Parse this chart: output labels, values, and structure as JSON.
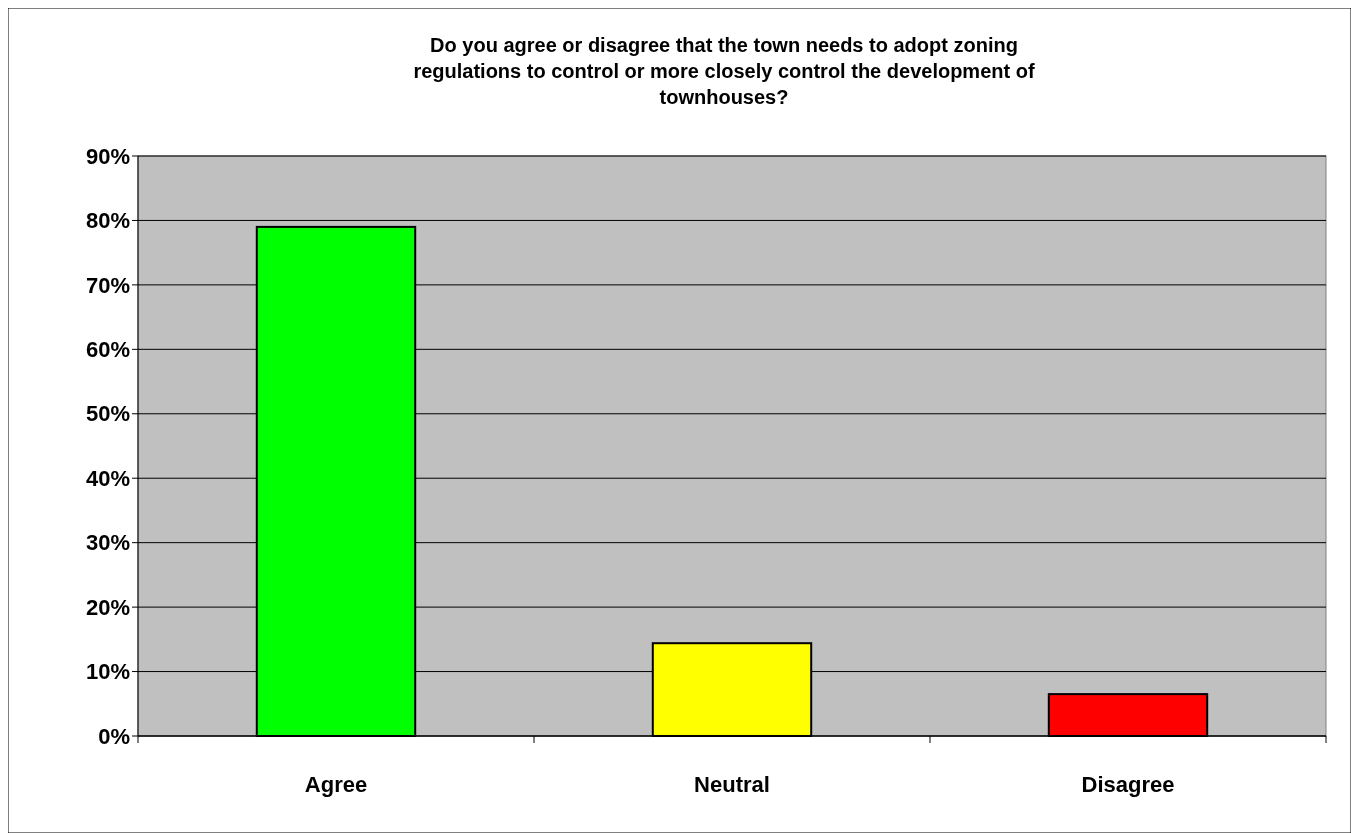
{
  "chart_data": {
    "type": "bar",
    "title": "Do you agree or disagree that the town needs to adopt zoning regulations to control or more closely control the development of townhouses?",
    "categories": [
      "Agree",
      "Neutral",
      "Disagree"
    ],
    "values": [
      79,
      14.4,
      6.5
    ],
    "colors": [
      "#00ff00",
      "#ffff00",
      "#ff0000"
    ],
    "ylim": [
      0,
      90
    ],
    "yticks": [
      {
        "value": 0,
        "label": "0%"
      },
      {
        "value": 10,
        "label": "10%"
      },
      {
        "value": 20,
        "label": "20%"
      },
      {
        "value": 30,
        "label": "30%"
      },
      {
        "value": 40,
        "label": "40%"
      },
      {
        "value": 50,
        "label": "50%"
      },
      {
        "value": 60,
        "label": "60%"
      },
      {
        "value": 70,
        "label": "70%"
      },
      {
        "value": 80,
        "label": "80%"
      },
      {
        "value": 90,
        "label": "90%"
      }
    ],
    "grid": "y"
  }
}
